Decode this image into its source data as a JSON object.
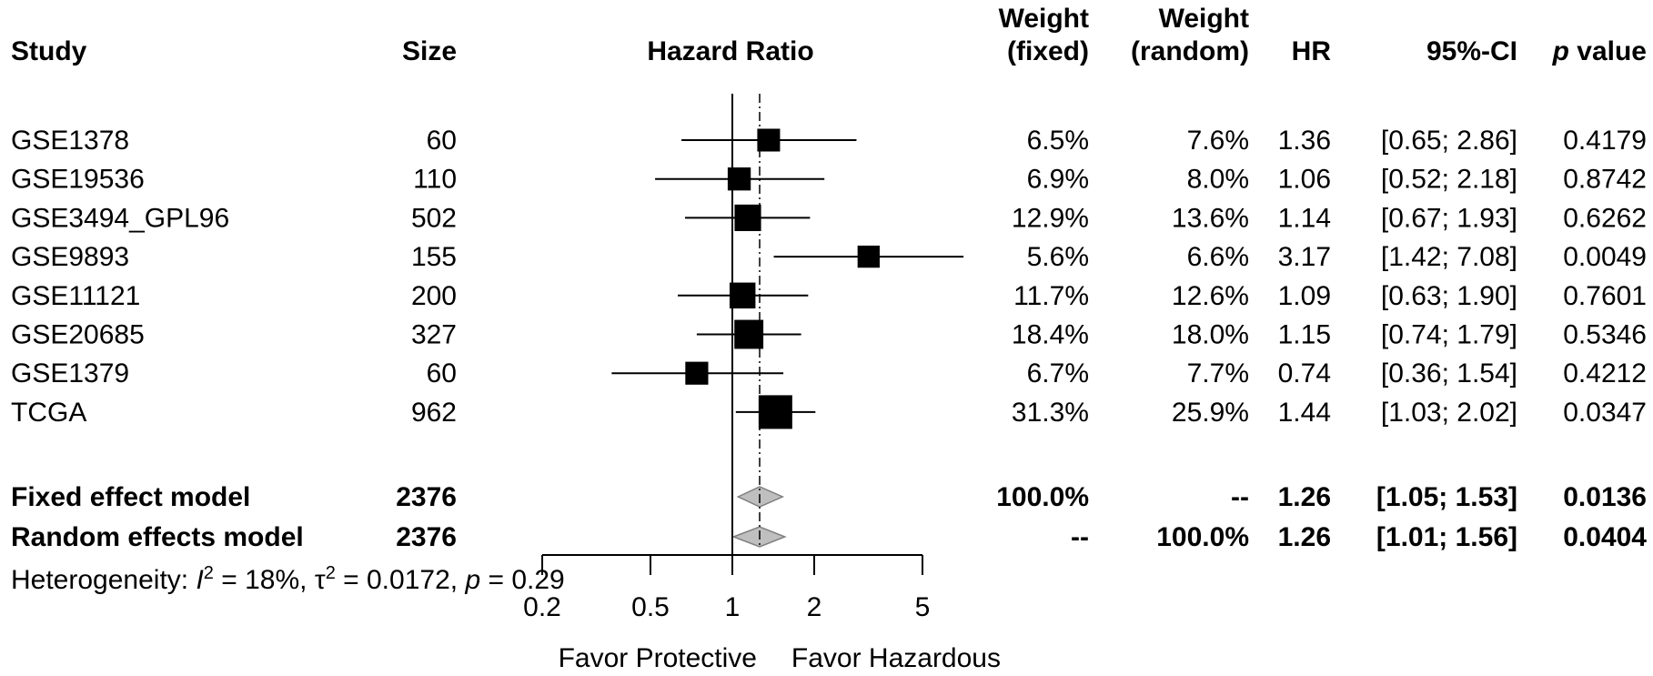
{
  "chart_data": {
    "type": "forest",
    "xlabel_left": "Favor Protective",
    "xlabel_right": "Favor Hazardous",
    "x_scale": "log",
    "xlim": [
      0.2,
      5
    ],
    "x_ticks": [
      0.2,
      0.5,
      1,
      2,
      5
    ],
    "x_tick_labels": [
      "0.2",
      "0.5",
      "1",
      "2",
      "5"
    ],
    "reference_line": 1,
    "pooled_line": 1.26,
    "headers": {
      "study": "Study",
      "size": "Size",
      "hazard_ratio": "Hazard Ratio",
      "weight_fixed_1": "Weight",
      "weight_fixed_2": "(fixed)",
      "weight_random_1": "Weight",
      "weight_random_2": "(random)",
      "hr": "HR",
      "ci": "95%-CI",
      "p_italic": "p",
      "p_rest": " value"
    },
    "studies": [
      {
        "name": "GSE1378",
        "size": "60",
        "hr": 1.36,
        "lower": 0.65,
        "upper": 2.86,
        "w_fixed": "6.5%",
        "w_random": "7.6%",
        "hr_text": "1.36",
        "ci_text": "[0.65; 2.86]",
        "p": "0.4179"
      },
      {
        "name": "GSE19536",
        "size": "110",
        "hr": 1.06,
        "lower": 0.52,
        "upper": 2.18,
        "w_fixed": "6.9%",
        "w_random": "8.0%",
        "hr_text": "1.06",
        "ci_text": "[0.52; 2.18]",
        "p": "0.8742"
      },
      {
        "name": "GSE3494_GPL96",
        "size": "502",
        "hr": 1.14,
        "lower": 0.67,
        "upper": 1.93,
        "w_fixed": "12.9%",
        "w_random": "13.6%",
        "hr_text": "1.14",
        "ci_text": "[0.67; 1.93]",
        "p": "0.6262"
      },
      {
        "name": "GSE9893",
        "size": "155",
        "hr": 3.17,
        "lower": 1.42,
        "upper": 7.08,
        "w_fixed": "5.6%",
        "w_random": "6.6%",
        "hr_text": "3.17",
        "ci_text": "[1.42; 7.08]",
        "p": "0.0049"
      },
      {
        "name": "GSE11121",
        "size": "200",
        "hr": 1.09,
        "lower": 0.63,
        "upper": 1.9,
        "w_fixed": "11.7%",
        "w_random": "12.6%",
        "hr_text": "1.09",
        "ci_text": "[0.63; 1.90]",
        "p": "0.7601"
      },
      {
        "name": "GSE20685",
        "size": "327",
        "hr": 1.15,
        "lower": 0.74,
        "upper": 1.79,
        "w_fixed": "18.4%",
        "w_random": "18.0%",
        "hr_text": "1.15",
        "ci_text": "[0.74; 1.79]",
        "p": "0.5346"
      },
      {
        "name": "GSE1379",
        "size": "60",
        "hr": 0.74,
        "lower": 0.36,
        "upper": 1.54,
        "w_fixed": "6.7%",
        "w_random": "7.7%",
        "hr_text": "0.74",
        "ci_text": "[0.36; 1.54]",
        "p": "0.4212"
      },
      {
        "name": "TCGA",
        "size": "962",
        "hr": 1.44,
        "lower": 1.03,
        "upper": 2.02,
        "w_fixed": "31.3%",
        "w_random": "25.9%",
        "hr_text": "1.44",
        "ci_text": "[1.03; 2.02]",
        "p": "0.0347"
      }
    ],
    "models": [
      {
        "name": "Fixed effect model",
        "size": "2376",
        "hr": 1.26,
        "lower": 1.05,
        "upper": 1.53,
        "w_fixed": "100.0%",
        "w_random": "--",
        "hr_text": "1.26",
        "ci_text": "[1.05; 1.53]",
        "p": "0.0136"
      },
      {
        "name": "Random effects model",
        "size": "2376",
        "hr": 1.26,
        "lower": 1.01,
        "upper": 1.56,
        "w_fixed": "--",
        "w_random": "100.0%",
        "hr_text": "1.26",
        "ci_text": "[1.01; 1.56]",
        "p": "0.0404"
      }
    ],
    "heterogeneity": {
      "prefix": "Heterogeneity: ",
      "i_symbol": "I",
      "i_exp": "2",
      "i_value": " = 18%, ",
      "tau_symbol": "τ",
      "tau_exp": "2",
      "tau_value": " = 0.0172, ",
      "p_symbol": "p",
      "p_value": " = 0.29"
    },
    "colors": {
      "study_marker": "#000000",
      "diamond_fill": "#bfbfbf",
      "diamond_stroke": "#7f7f7f",
      "lines": "#000000"
    }
  }
}
